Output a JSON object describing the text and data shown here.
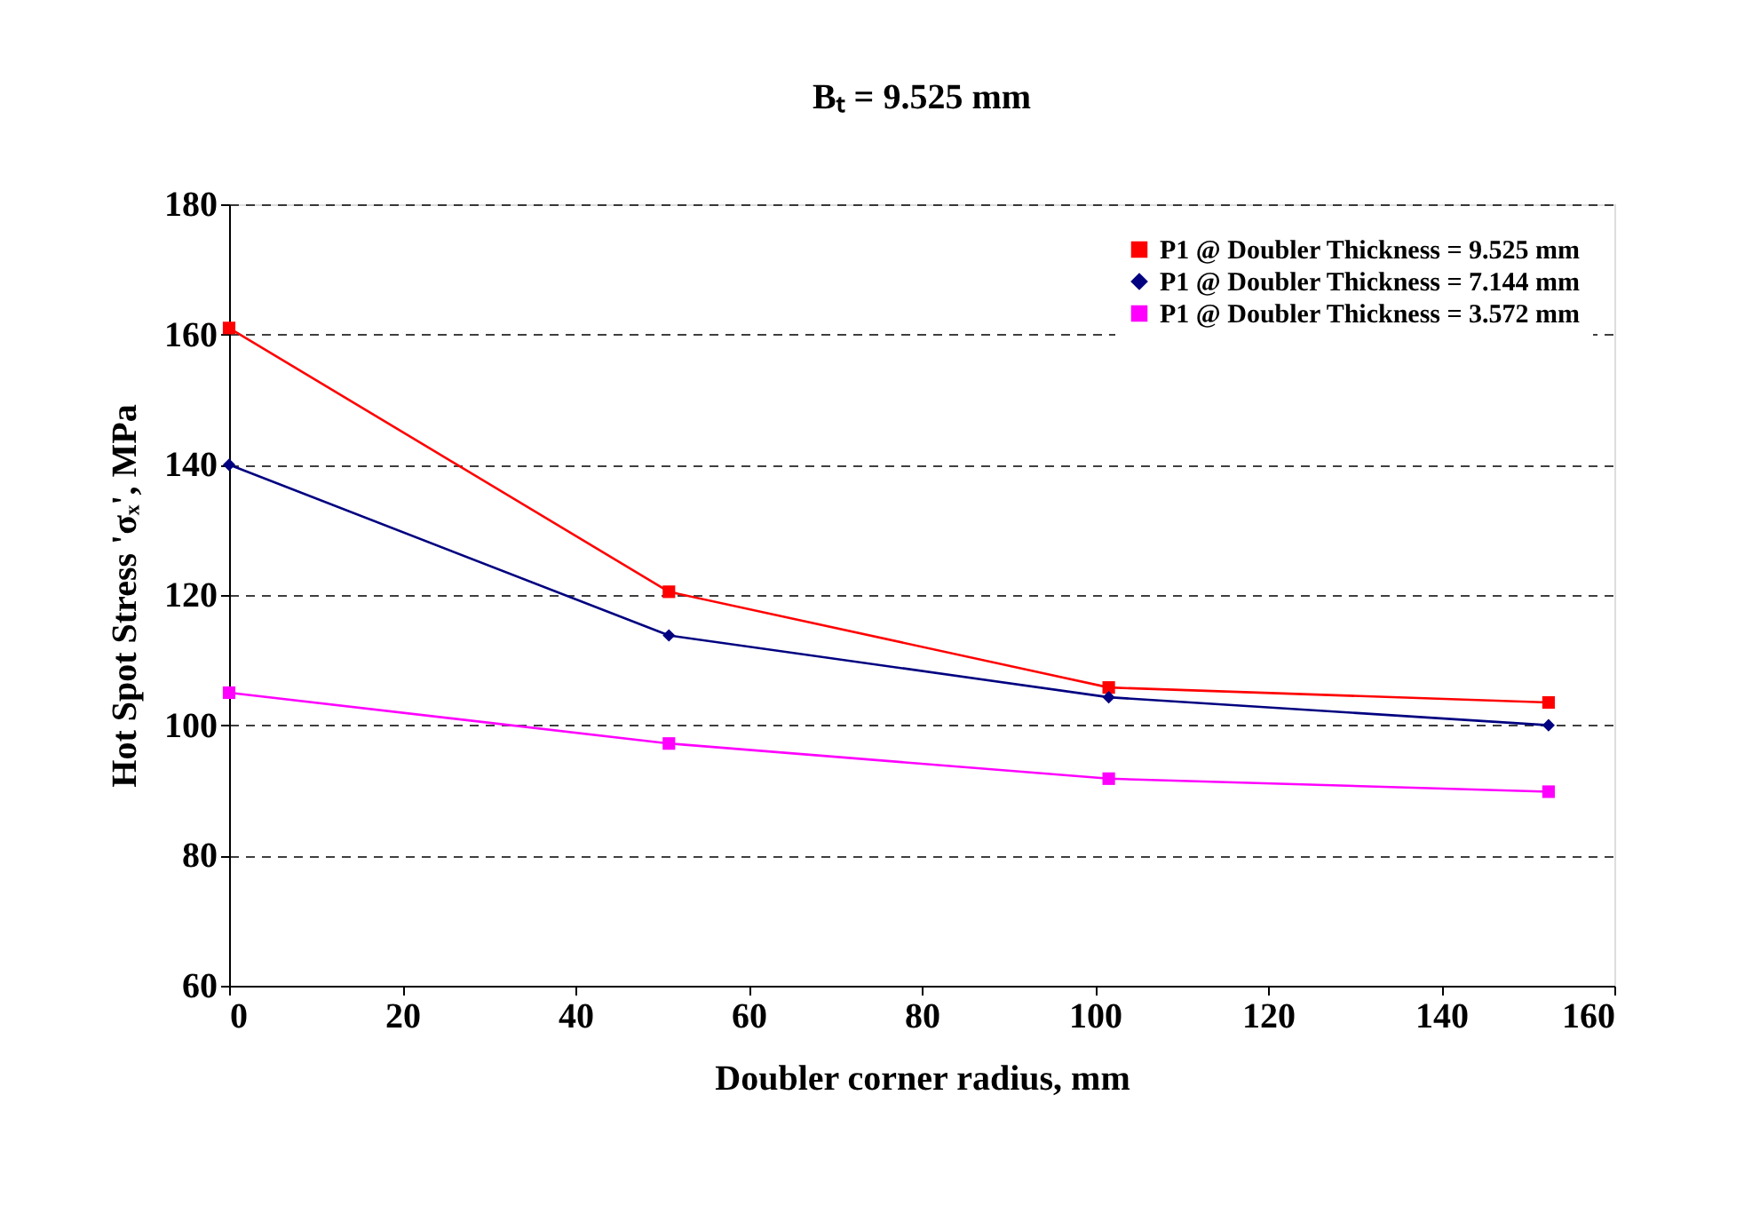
{
  "chart_data": {
    "type": "line",
    "title": "Bₜ = 9.525 mm",
    "xlabel": "Doubler corner radius, mm",
    "ylabel": "Hot Spot Stress 'σₓ', MPa",
    "x": [
      0,
      50.8,
      101.6,
      152.4
    ],
    "series": [
      {
        "name": "P1 @ Doubler Thickness = 9.525 mm",
        "color": "#ff0000",
        "marker": "square",
        "values": [
          161,
          120.5,
          105.8,
          103.5
        ]
      },
      {
        "name": "P1 @ Doubler Thickness = 7.144 mm",
        "color": "#000080",
        "marker": "diamond",
        "values": [
          140,
          113.8,
          104.3,
          100
        ]
      },
      {
        "name": "P1 @ Doubler Thickness = 3.572 mm",
        "color": "#ff00ff",
        "marker": "square",
        "values": [
          105,
          97.2,
          91.8,
          89.8
        ]
      }
    ],
    "xlim": [
      0,
      160
    ],
    "xticks": [
      0,
      20,
      40,
      60,
      80,
      100,
      120,
      140,
      160
    ],
    "ylim": [
      60,
      180
    ],
    "yticks": [
      60,
      80,
      100,
      120,
      140,
      160,
      180
    ],
    "grid": "y",
    "legend": "top right",
    "line_style": "solid"
  }
}
